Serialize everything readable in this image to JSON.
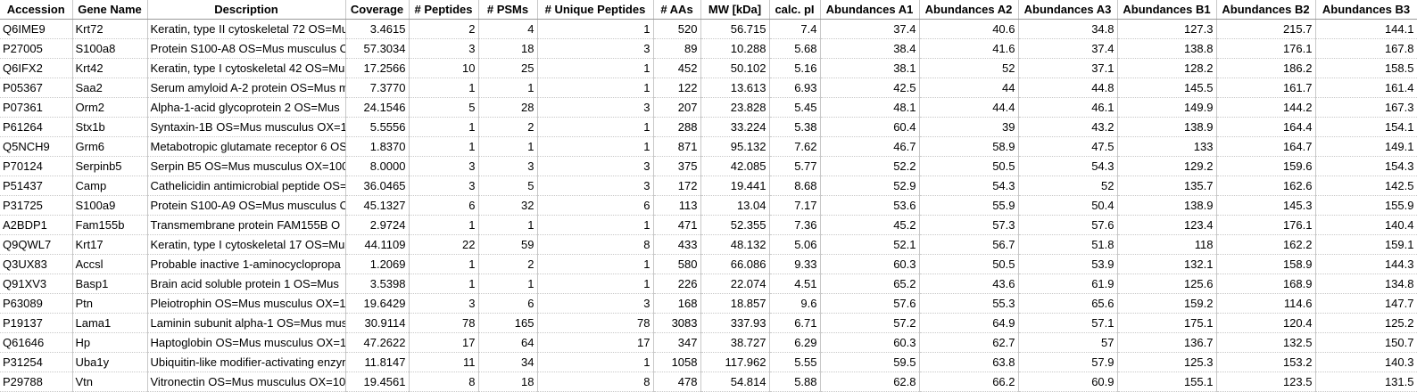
{
  "sheet": {
    "columns": [
      {
        "key": "accession",
        "label": "Accession",
        "align": "txt"
      },
      {
        "key": "gene",
        "label": "Gene Name",
        "align": "txt"
      },
      {
        "key": "description",
        "label": "Description",
        "align": "txt desc"
      },
      {
        "key": "coverage",
        "label": "Coverage",
        "align": "num"
      },
      {
        "key": "peptides",
        "label": "# Peptides",
        "align": "num"
      },
      {
        "key": "psms",
        "label": "# PSMs",
        "align": "num"
      },
      {
        "key": "unique",
        "label": "# Unique Peptides",
        "align": "num"
      },
      {
        "key": "aas",
        "label": "# AAs",
        "align": "num"
      },
      {
        "key": "mw",
        "label": "MW [kDa]",
        "align": "num"
      },
      {
        "key": "pi",
        "label": "calc. pI",
        "align": "num"
      },
      {
        "key": "a1",
        "label": "Abundances A1",
        "align": "num"
      },
      {
        "key": "a2",
        "label": "Abundances A2",
        "align": "num"
      },
      {
        "key": "a3",
        "label": "Abundances A3",
        "align": "num"
      },
      {
        "key": "b1",
        "label": "Abundances B1",
        "align": "num"
      },
      {
        "key": "b2",
        "label": "Abundances B2",
        "align": "num"
      },
      {
        "key": "b3",
        "label": "Abundances B3",
        "align": "num"
      }
    ],
    "rows": [
      [
        "Q6IME9",
        "Krt72",
        "Keratin, type II cytoskeletal 72 OS=Mu",
        "3.4615",
        "2",
        "4",
        "1",
        "520",
        "56.715",
        "7.4",
        "37.4",
        "40.6",
        "34.8",
        "127.3",
        "215.7",
        "144.1"
      ],
      [
        "P27005",
        "S100a8",
        "Protein S100-A8 OS=Mus musculus O",
        "57.3034",
        "3",
        "18",
        "3",
        "89",
        "10.288",
        "5.68",
        "38.4",
        "41.6",
        "37.4",
        "138.8",
        "176.1",
        "167.8"
      ],
      [
        "Q6IFX2",
        "Krt42",
        "Keratin, type I cytoskeletal 42 OS=Mu",
        "17.2566",
        "10",
        "25",
        "1",
        "452",
        "50.102",
        "5.16",
        "38.1",
        "52",
        "37.1",
        "128.2",
        "186.2",
        "158.5"
      ],
      [
        "P05367",
        "Saa2",
        "Serum amyloid A-2 protein OS=Mus m",
        "7.3770",
        "1",
        "1",
        "1",
        "122",
        "13.613",
        "6.93",
        "42.5",
        "44",
        "44.8",
        "145.5",
        "161.7",
        "161.4"
      ],
      [
        "P07361",
        "Orm2",
        "Alpha-1-acid glycoprotein 2 OS=Mus",
        "24.1546",
        "5",
        "28",
        "3",
        "207",
        "23.828",
        "5.45",
        "48.1",
        "44.4",
        "46.1",
        "149.9",
        "144.2",
        "167.3"
      ],
      [
        "P61264",
        "Stx1b",
        "Syntaxin-1B OS=Mus musculus OX=1",
        "5.5556",
        "1",
        "2",
        "1",
        "288",
        "33.224",
        "5.38",
        "60.4",
        "39",
        "43.2",
        "138.9",
        "164.4",
        "154.1"
      ],
      [
        "Q5NCH9",
        "Grm6",
        "Metabotropic glutamate receptor 6 OS",
        "1.8370",
        "1",
        "1",
        "1",
        "871",
        "95.132",
        "7.62",
        "46.7",
        "58.9",
        "47.5",
        "133",
        "164.7",
        "149.1"
      ],
      [
        "P70124",
        "Serpinb5",
        "Serpin B5 OS=Mus musculus OX=100",
        "8.0000",
        "3",
        "3",
        "3",
        "375",
        "42.085",
        "5.77",
        "52.2",
        "50.5",
        "54.3",
        "129.2",
        "159.6",
        "154.3"
      ],
      [
        "P51437",
        "Camp",
        "Cathelicidin antimicrobial peptide OS=",
        "36.0465",
        "3",
        "5",
        "3",
        "172",
        "19.441",
        "8.68",
        "52.9",
        "54.3",
        "52",
        "135.7",
        "162.6",
        "142.5"
      ],
      [
        "P31725",
        "S100a9",
        "Protein S100-A9 OS=Mus musculus O",
        "45.1327",
        "6",
        "32",
        "6",
        "113",
        "13.04",
        "7.17",
        "53.6",
        "55.9",
        "50.4",
        "138.9",
        "145.3",
        "155.9"
      ],
      [
        "A2BDP1",
        "Fam155b",
        "Transmembrane protein FAM155B O",
        "2.9724",
        "1",
        "1",
        "1",
        "471",
        "52.355",
        "7.36",
        "45.2",
        "57.3",
        "57.6",
        "123.4",
        "176.1",
        "140.4"
      ],
      [
        "Q9QWL7",
        "Krt17",
        "Keratin, type I cytoskeletal 17 OS=Mu",
        "44.1109",
        "22",
        "59",
        "8",
        "433",
        "48.132",
        "5.06",
        "52.1",
        "56.7",
        "51.8",
        "118",
        "162.2",
        "159.1"
      ],
      [
        "Q3UX83",
        "Accsl",
        "Probable inactive 1-aminocyclopropa",
        "1.2069",
        "1",
        "2",
        "1",
        "580",
        "66.086",
        "9.33",
        "60.3",
        "50.5",
        "53.9",
        "132.1",
        "158.9",
        "144.3"
      ],
      [
        "Q91XV3",
        "Basp1",
        "Brain acid soluble protein 1 OS=Mus",
        "3.5398",
        "1",
        "1",
        "1",
        "226",
        "22.074",
        "4.51",
        "65.2",
        "43.6",
        "61.9",
        "125.6",
        "168.9",
        "134.8"
      ],
      [
        "P63089",
        "Ptn",
        "Pleiotrophin OS=Mus musculus OX=1",
        "19.6429",
        "3",
        "6",
        "3",
        "168",
        "18.857",
        "9.6",
        "57.6",
        "55.3",
        "65.6",
        "159.2",
        "114.6",
        "147.7"
      ],
      [
        "P19137",
        "Lama1",
        "Laminin subunit alpha-1 OS=Mus mus",
        "30.9114",
        "78",
        "165",
        "78",
        "3083",
        "337.93",
        "6.71",
        "57.2",
        "64.9",
        "57.1",
        "175.1",
        "120.4",
        "125.2"
      ],
      [
        "Q61646",
        "Hp",
        "Haptoglobin OS=Mus musculus OX=1",
        "47.2622",
        "17",
        "64",
        "17",
        "347",
        "38.727",
        "6.29",
        "60.3",
        "62.7",
        "57",
        "136.7",
        "132.5",
        "150.7"
      ],
      [
        "P31254",
        "Uba1y",
        "Ubiquitin-like modifier-activating enzyr",
        "11.8147",
        "11",
        "34",
        "1",
        "1058",
        "117.962",
        "5.55",
        "59.5",
        "63.8",
        "57.9",
        "125.3",
        "153.2",
        "140.3"
      ],
      [
        "P29788",
        "Vtn",
        "Vitronectin OS=Mus musculus OX=10",
        "19.4561",
        "8",
        "18",
        "8",
        "478",
        "54.814",
        "5.88",
        "62.8",
        "66.2",
        "60.9",
        "155.1",
        "123.5",
        "131.5"
      ]
    ]
  }
}
